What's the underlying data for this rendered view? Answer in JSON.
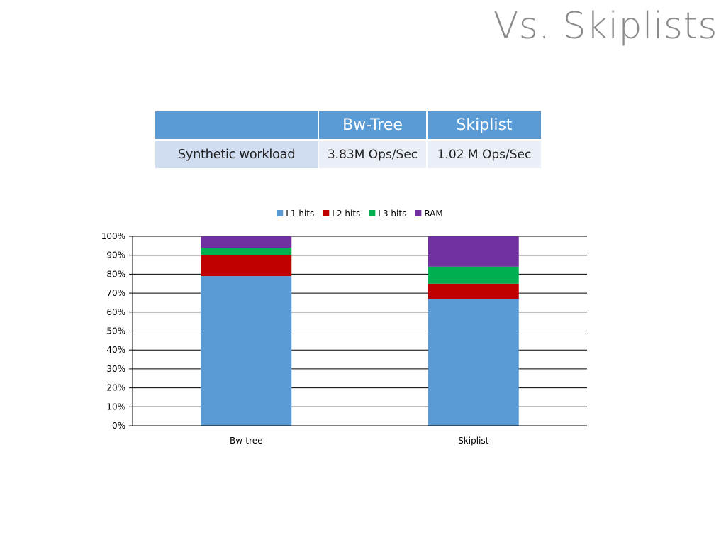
{
  "slide": {
    "title": "Vs. Skiplists"
  },
  "table": {
    "corner": "",
    "headers": [
      "Bw-Tree",
      "Skiplist"
    ],
    "rows": [
      {
        "label": "Synthetic workload",
        "values": [
          "3.83M Ops/Sec",
          "1.02 M Ops/Sec"
        ]
      }
    ]
  },
  "chart_data": {
    "type": "bar",
    "stacked": true,
    "percent_stacked": true,
    "categories": [
      "Bw-tree",
      "Skiplist"
    ],
    "series": [
      {
        "name": "L1 hits",
        "color": "#5b9bd5",
        "values": [
          79,
          67
        ]
      },
      {
        "name": "L2 hits",
        "color": "#c00000",
        "values": [
          11,
          8
        ]
      },
      {
        "name": "L3 hits",
        "color": "#00b050",
        "values": [
          4,
          9
        ]
      },
      {
        "name": "RAM",
        "color": "#7030a0",
        "values": [
          6,
          16
        ]
      }
    ],
    "y_ticks": [
      "0%",
      "10%",
      "20%",
      "30%",
      "40%",
      "50%",
      "60%",
      "70%",
      "80%",
      "90%",
      "100%"
    ],
    "ylim": [
      0,
      100
    ],
    "grid": true,
    "legend_position": "top"
  }
}
